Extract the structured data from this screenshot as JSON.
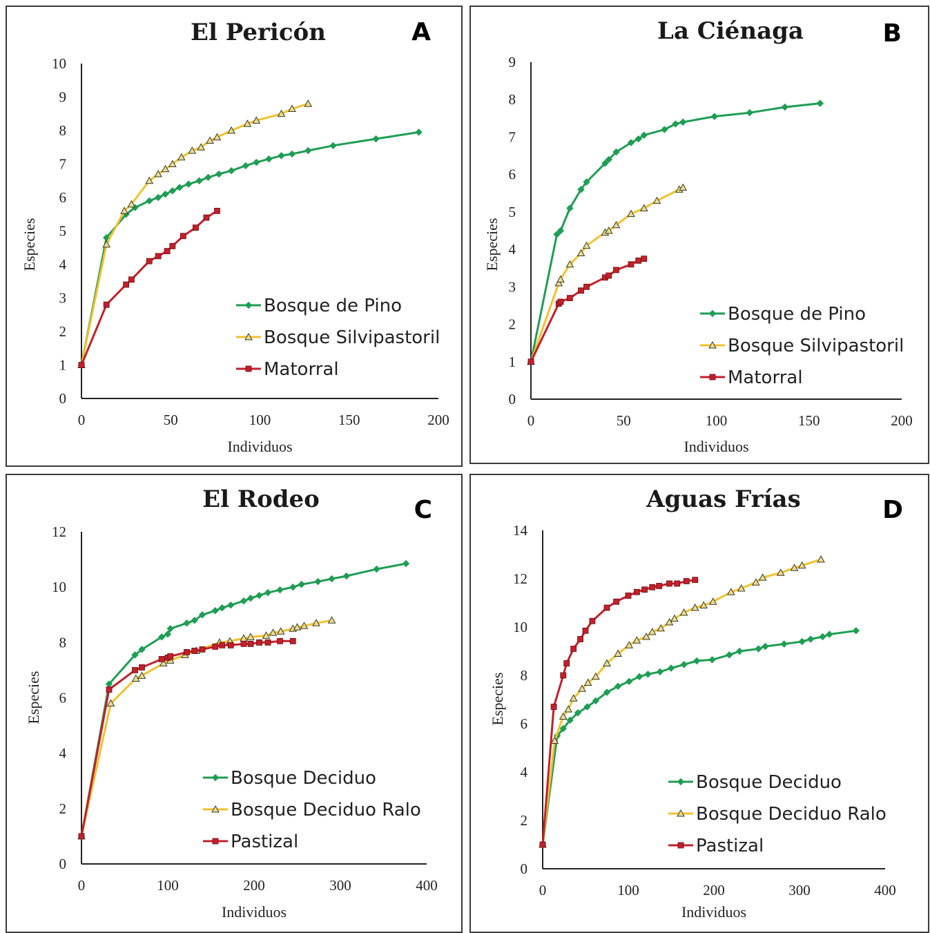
{
  "colors": {
    "green": "#1e9e53",
    "yellow": "#f2c12e",
    "red": "#c3202a",
    "axis": "#222222"
  },
  "chart_data": [
    {
      "type": "line",
      "panel_letter": "A",
      "title": "El Pericón",
      "xlabel": "Individuos",
      "ylabel": "Especies",
      "xlim": [
        0,
        200
      ],
      "ylim": [
        0,
        10
      ],
      "xticks": [
        0,
        50,
        100,
        150,
        200
      ],
      "yticks": [
        0,
        1,
        2,
        3,
        4,
        5,
        6,
        7,
        8,
        9,
        10
      ],
      "legend_position": "bottom-right",
      "series": [
        {
          "name": "Bosque de Pino",
          "color": "green",
          "marker": "diamond",
          "x": [
            0,
            14,
            25,
            30,
            38,
            43,
            47,
            51,
            55,
            60,
            66,
            71,
            77,
            84,
            92,
            98,
            105,
            112,
            118,
            127,
            141,
            165,
            189
          ],
          "y": [
            1,
            4.8,
            5.5,
            5.7,
            5.9,
            6.0,
            6.1,
            6.2,
            6.3,
            6.4,
            6.5,
            6.6,
            6.7,
            6.8,
            6.95,
            7.05,
            7.15,
            7.25,
            7.3,
            7.4,
            7.55,
            7.75,
            7.95
          ]
        },
        {
          "name": "Bosque Silvipastoril",
          "color": "yellow",
          "marker": "triangle",
          "x": [
            0,
            14,
            24,
            28,
            38,
            43,
            47,
            51,
            56,
            62,
            67,
            72,
            76,
            84,
            93,
            98,
            112,
            118,
            127
          ],
          "y": [
            1,
            4.6,
            5.6,
            5.8,
            6.5,
            6.7,
            6.85,
            7.0,
            7.2,
            7.4,
            7.5,
            7.7,
            7.8,
            8.0,
            8.2,
            8.3,
            8.5,
            8.65,
            8.8
          ]
        },
        {
          "name": "Matorral",
          "color": "red",
          "marker": "square",
          "x": [
            0,
            14,
            25,
            28,
            38,
            43,
            48,
            51,
            57,
            64,
            70,
            76
          ],
          "y": [
            1,
            2.8,
            3.4,
            3.55,
            4.1,
            4.25,
            4.4,
            4.55,
            4.85,
            5.1,
            5.4,
            5.6
          ]
        }
      ]
    },
    {
      "type": "line",
      "panel_letter": "B",
      "title": "La Ciénaga",
      "xlabel": "Individuos",
      "ylabel": "Especies",
      "xlim": [
        0,
        200
      ],
      "ylim": [
        0,
        9
      ],
      "xticks": [
        0,
        50,
        100,
        150,
        200
      ],
      "yticks": [
        0,
        1,
        2,
        3,
        4,
        5,
        6,
        7,
        8,
        9
      ],
      "legend_position": "bottom-right",
      "series": [
        {
          "name": "Bosque de Pino",
          "color": "green",
          "marker": "diamond",
          "x": [
            0,
            14,
            16,
            21,
            27,
            30,
            40,
            42,
            46,
            54,
            58,
            61,
            72,
            78,
            82,
            99,
            118,
            137,
            156
          ],
          "y": [
            1,
            4.4,
            4.5,
            5.1,
            5.6,
            5.8,
            6.3,
            6.4,
            6.6,
            6.85,
            6.95,
            7.05,
            7.2,
            7.35,
            7.4,
            7.55,
            7.65,
            7.8,
            7.9
          ]
        },
        {
          "name": "Bosque Silvipastoril",
          "color": "yellow",
          "marker": "triangle",
          "x": [
            0,
            15,
            16,
            21,
            27,
            30,
            40,
            42,
            46,
            54,
            61,
            68,
            80,
            82
          ],
          "y": [
            1,
            3.1,
            3.2,
            3.6,
            3.9,
            4.1,
            4.45,
            4.5,
            4.65,
            4.95,
            5.1,
            5.3,
            5.6,
            5.65
          ]
        },
        {
          "name": "Matorral",
          "color": "red",
          "marker": "square",
          "x": [
            0,
            15,
            16,
            21,
            27,
            30,
            40,
            42,
            46,
            54,
            58,
            61
          ],
          "y": [
            1,
            2.55,
            2.6,
            2.7,
            2.9,
            3.0,
            3.25,
            3.3,
            3.45,
            3.6,
            3.7,
            3.75
          ]
        }
      ]
    },
    {
      "type": "line",
      "panel_letter": "C",
      "title": "El Rodeo",
      "xlabel": "Individuos",
      "ylabel": "Especies",
      "xlim": [
        0,
        400
      ],
      "ylim": [
        0,
        12
      ],
      "xticks": [
        0,
        100,
        200,
        300,
        400
      ],
      "yticks": [
        0,
        2,
        4,
        6,
        8,
        10,
        12
      ],
      "legend_position": "bottom-right",
      "series": [
        {
          "name": "Bosque Deciduo",
          "color": "green",
          "marker": "diamond",
          "x": [
            0,
            32,
            62,
            70,
            93,
            100,
            103,
            122,
            131,
            140,
            155,
            163,
            173,
            188,
            196,
            206,
            216,
            230,
            245,
            255,
            274,
            290,
            307,
            342,
            376
          ],
          "y": [
            1,
            6.5,
            7.55,
            7.75,
            8.2,
            8.3,
            8.5,
            8.7,
            8.8,
            9.0,
            9.15,
            9.25,
            9.35,
            9.5,
            9.6,
            9.7,
            9.8,
            9.9,
            10.0,
            10.1,
            10.2,
            10.3,
            10.4,
            10.65,
            10.85
          ]
        },
        {
          "name": "Bosque Deciduo Ralo",
          "color": "yellow",
          "marker": "triangle",
          "x": [
            0,
            34,
            63,
            70,
            95,
            103,
            120,
            133,
            160,
            172,
            188,
            196,
            214,
            222,
            231,
            245,
            250,
            258,
            272,
            290
          ],
          "y": [
            1,
            5.8,
            6.7,
            6.8,
            7.25,
            7.35,
            7.55,
            7.7,
            8.0,
            8.05,
            8.15,
            8.2,
            8.25,
            8.35,
            8.4,
            8.5,
            8.55,
            8.6,
            8.7,
            8.8
          ]
        },
        {
          "name": "Pastizal",
          "color": "red",
          "marker": "square",
          "x": [
            0,
            32,
            62,
            70,
            93,
            100,
            103,
            122,
            131,
            140,
            155,
            163,
            173,
            188,
            196,
            206,
            216,
            230,
            245
          ],
          "y": [
            1,
            6.3,
            7.0,
            7.1,
            7.4,
            7.45,
            7.5,
            7.65,
            7.7,
            7.75,
            7.85,
            7.9,
            7.9,
            7.95,
            7.95,
            8.0,
            8.0,
            8.05,
            8.05
          ]
        }
      ]
    },
    {
      "type": "line",
      "panel_letter": "D",
      "title": "Aguas Frías",
      "xlabel": "Individuos",
      "ylabel": "Especies",
      "xlim": [
        0,
        400
      ],
      "ylim": [
        0,
        14
      ],
      "xticks": [
        0,
        100,
        200,
        300,
        400
      ],
      "yticks": [
        0,
        2,
        4,
        6,
        8,
        10,
        12,
        14
      ],
      "legend_position": "bottom-right",
      "series": [
        {
          "name": "Bosque Deciduo",
          "color": "green",
          "marker": "diamond",
          "x": [
            0,
            17,
            24,
            32,
            41,
            52,
            62,
            75,
            88,
            101,
            113,
            123,
            137,
            150,
            165,
            180,
            198,
            218,
            230,
            252,
            260,
            282,
            303,
            313,
            327,
            335,
            366
          ],
          "y": [
            1,
            5.5,
            5.8,
            6.15,
            6.45,
            6.7,
            6.95,
            7.3,
            7.55,
            7.75,
            7.95,
            8.05,
            8.15,
            8.3,
            8.45,
            8.6,
            8.65,
            8.85,
            9.0,
            9.1,
            9.2,
            9.3,
            9.4,
            9.5,
            9.6,
            9.7,
            9.85
          ]
        },
        {
          "name": "Bosque Deciduo Ralo",
          "color": "yellow",
          "marker": "triangle",
          "x": [
            0,
            14,
            24,
            30,
            36,
            46,
            53,
            62,
            75,
            88,
            101,
            110,
            121,
            128,
            138,
            148,
            154,
            165,
            178,
            188,
            199,
            220,
            232,
            249,
            257,
            278,
            294,
            303,
            325
          ],
          "y": [
            1,
            5.3,
            6.3,
            6.6,
            7.05,
            7.45,
            7.7,
            7.95,
            8.5,
            8.9,
            9.25,
            9.45,
            9.6,
            9.8,
            9.95,
            10.2,
            10.35,
            10.6,
            10.8,
            10.9,
            11.05,
            11.45,
            11.6,
            11.85,
            12.05,
            12.25,
            12.45,
            12.55,
            12.8
          ]
        },
        {
          "name": "Pastizal",
          "color": "red",
          "marker": "square",
          "x": [
            0,
            13,
            24,
            28,
            36,
            44,
            50,
            58,
            75,
            86,
            100,
            110,
            119,
            128,
            136,
            148,
            157,
            168,
            178
          ],
          "y": [
            1,
            6.7,
            8.0,
            8.5,
            9.1,
            9.5,
            9.85,
            10.25,
            10.8,
            11.05,
            11.3,
            11.45,
            11.55,
            11.65,
            11.7,
            11.8,
            11.8,
            11.9,
            11.95
          ]
        }
      ]
    }
  ]
}
